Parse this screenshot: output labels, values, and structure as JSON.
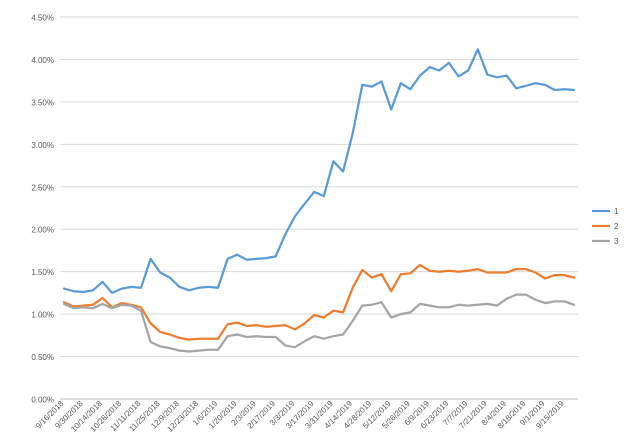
{
  "chart_data": {
    "type": "line",
    "title": "",
    "xlabel": "",
    "ylabel": "",
    "ylim": [
      0,
      0.045
    ],
    "y_ticks": [
      0,
      0.005,
      0.01,
      0.015,
      0.02,
      0.025,
      0.03,
      0.035,
      0.04,
      0.045
    ],
    "y_tick_labels": [
      "0.00%",
      "0.50%",
      "1.00%",
      "1.50%",
      "2.00%",
      "2.50%",
      "3.00%",
      "3.50%",
      "4.00%",
      "4.50%"
    ],
    "grid": "horizontal",
    "legend_position": "right",
    "x": [
      "9/16/2018",
      "9/23/2018",
      "9/30/2018",
      "10/7/2018",
      "10/14/2018",
      "10/21/2018",
      "10/28/2018",
      "11/4/2018",
      "11/11/2018",
      "11/18/2018",
      "11/25/2018",
      "12/2/2018",
      "12/9/2018",
      "12/16/2018",
      "12/23/2018",
      "12/30/2018",
      "1/6/2019",
      "1/13/2019",
      "1/20/2019",
      "1/27/2019",
      "2/3/2019",
      "2/10/2019",
      "2/17/2019",
      "2/24/2019",
      "3/3/2019",
      "3/10/2019",
      "3/17/2019",
      "3/24/2019",
      "3/31/2019",
      "4/7/2019",
      "4/14/2019",
      "4/21/2019",
      "4/28/2019",
      "5/5/2019",
      "5/12/2019",
      "5/19/2019",
      "5/26/2019",
      "6/2/2019",
      "6/9/2019",
      "6/16/2019",
      "6/23/2019",
      "6/30/2019",
      "7/7/2019",
      "7/14/2019",
      "7/21/2019",
      "7/28/2019",
      "8/4/2019",
      "8/11/2019",
      "8/18/2019",
      "8/25/2019",
      "9/1/2019",
      "9/8/2019",
      "9/15/2019",
      "9/22/2019"
    ],
    "x_tick_labels": [
      "9/16/2018",
      "9/30/2018",
      "10/14/2018",
      "10/28/2018",
      "11/11/2018",
      "11/25/2018",
      "12/9/2018",
      "12/23/2018",
      "1/6/2019",
      "1/20/2019",
      "2/3/2019",
      "2/17/2019",
      "3/3/2019",
      "3/17/2019",
      "3/31/2019",
      "4/14/2019",
      "4/28/2019",
      "5/12/2019",
      "5/26/2019",
      "6/9/2019",
      "6/23/2019",
      "7/7/2019",
      "7/21/2019",
      "8/4/2019",
      "8/18/2019",
      "9/1/2019",
      "9/15/2019"
    ],
    "series": [
      {
        "name": "1",
        "color": "#5b9bd5",
        "values": [
          0.013,
          0.0127,
          0.0126,
          0.0128,
          0.0138,
          0.0125,
          0.013,
          0.0132,
          0.0131,
          0.0165,
          0.0149,
          0.0143,
          0.0132,
          0.0128,
          0.0131,
          0.0132,
          0.0131,
          0.0165,
          0.017,
          0.0164,
          0.0165,
          0.0166,
          0.0168,
          0.0194,
          0.0215,
          0.023,
          0.0244,
          0.0239,
          0.028,
          0.0268,
          0.0313,
          0.037,
          0.0368,
          0.0374,
          0.0341,
          0.0372,
          0.0365,
          0.0381,
          0.0391,
          0.0387,
          0.0396,
          0.038,
          0.0387,
          0.0412,
          0.0382,
          0.0379,
          0.0381,
          0.0366,
          0.0369,
          0.0372,
          0.037,
          0.0364,
          0.0365,
          0.0364
        ]
      },
      {
        "name": "2",
        "color": "#ed7d31",
        "values": [
          0.0114,
          0.0109,
          0.011,
          0.0111,
          0.0119,
          0.0108,
          0.0113,
          0.0111,
          0.0108,
          0.0089,
          0.0079,
          0.0076,
          0.0072,
          0.007,
          0.0071,
          0.0071,
          0.0071,
          0.0088,
          0.009,
          0.0086,
          0.0087,
          0.0085,
          0.0086,
          0.0087,
          0.0082,
          0.0089,
          0.0099,
          0.0096,
          0.0104,
          0.0102,
          0.0131,
          0.0152,
          0.0143,
          0.0147,
          0.0127,
          0.0147,
          0.0148,
          0.0158,
          0.0151,
          0.015,
          0.0151,
          0.015,
          0.0151,
          0.0153,
          0.0149,
          0.0149,
          0.0149,
          0.0153,
          0.0153,
          0.0149,
          0.0142,
          0.0146,
          0.0146,
          0.0143
        ]
      },
      {
        "name": "3",
        "color": "#a5a5a5",
        "values": [
          0.0112,
          0.0107,
          0.0108,
          0.0107,
          0.0112,
          0.0107,
          0.0111,
          0.011,
          0.0104,
          0.0067,
          0.0062,
          0.006,
          0.0057,
          0.0056,
          0.0057,
          0.0058,
          0.0058,
          0.0074,
          0.0076,
          0.0073,
          0.0074,
          0.0073,
          0.0073,
          0.0063,
          0.0061,
          0.0068,
          0.0074,
          0.0071,
          0.0074,
          0.0076,
          0.0092,
          0.011,
          0.0111,
          0.0114,
          0.0096,
          0.01,
          0.0102,
          0.0112,
          0.011,
          0.0108,
          0.0108,
          0.0111,
          0.011,
          0.0111,
          0.0112,
          0.011,
          0.0118,
          0.0123,
          0.0123,
          0.0117,
          0.0113,
          0.0115,
          0.0115,
          0.0111
        ]
      }
    ]
  }
}
